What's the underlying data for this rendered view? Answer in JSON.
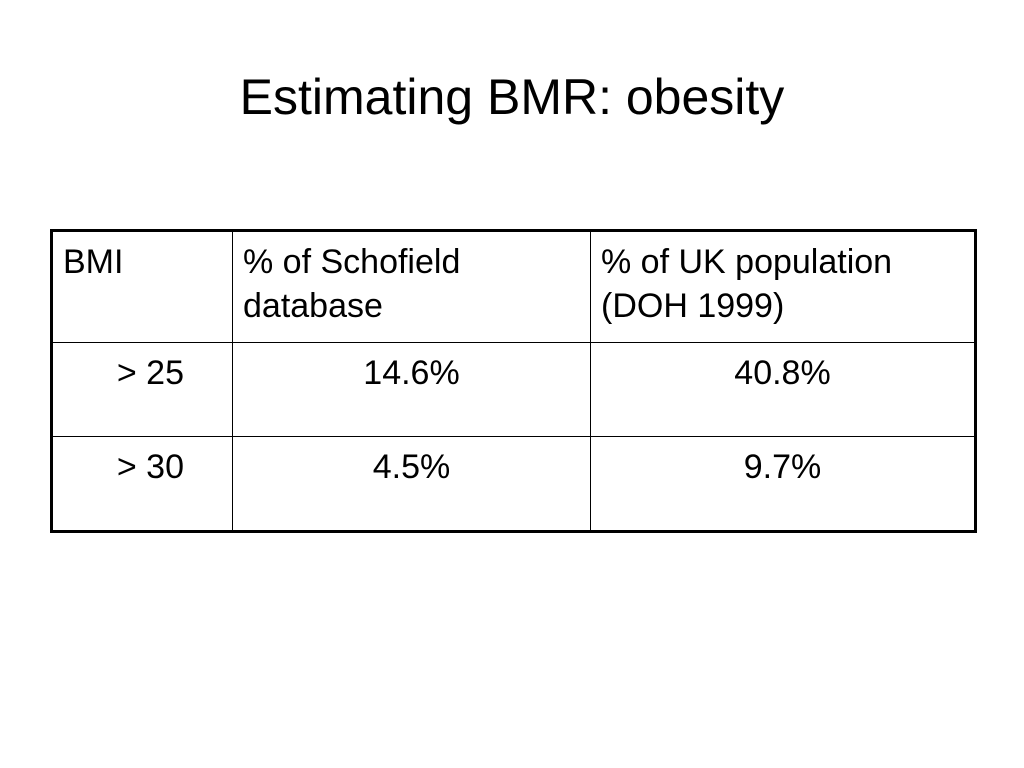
{
  "slide": {
    "title": "Estimating BMR: obesity"
  },
  "table": {
    "headers": [
      "BMI",
      "% of Schofield database",
      "% of UK population (DOH 1999)"
    ],
    "header_lines": [
      [
        "BMI"
      ],
      [
        "% of Schofield",
        "database"
      ],
      [
        "% of UK population",
        "(DOH 1999)"
      ]
    ],
    "rows": [
      [
        "> 25",
        "14.6%",
        "40.8%"
      ],
      [
        "> 30",
        "4.5%",
        "9.7%"
      ]
    ]
  }
}
